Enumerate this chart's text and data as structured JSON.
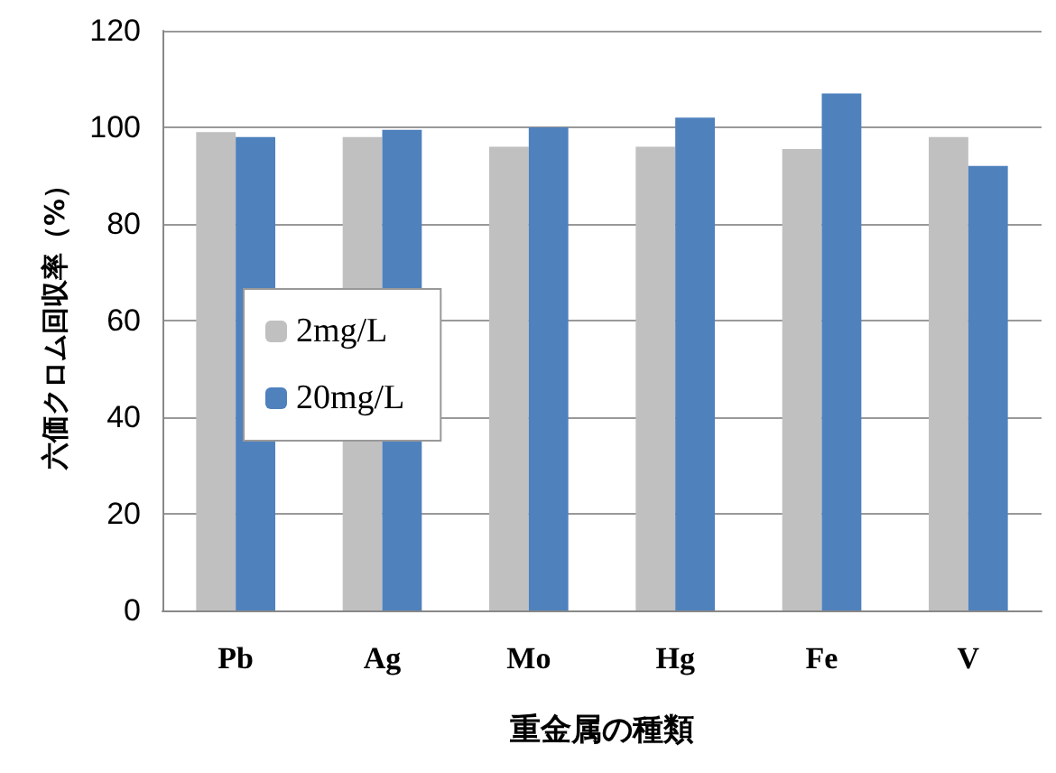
{
  "chart_data": {
    "type": "bar",
    "xlabel": "重金属の種類",
    "ylabel": "六価クロム回収率（%）",
    "categories": [
      "Pb",
      "Ag",
      "Mo",
      "Hg",
      "Fe",
      "V"
    ],
    "series": [
      {
        "name": "2mg/L",
        "color": "#c0c0c0",
        "values": [
          99,
          98,
          96,
          96,
          95.5,
          98
        ]
      },
      {
        "name": "20mg/L",
        "color": "#4f81bd",
        "values": [
          98,
          99.5,
          100,
          102,
          107,
          92
        ]
      }
    ],
    "ylim": [
      0,
      120
    ],
    "yticks": [
      0,
      20,
      40,
      60,
      80,
      100,
      120
    ],
    "grid": "y",
    "legend": "left"
  }
}
